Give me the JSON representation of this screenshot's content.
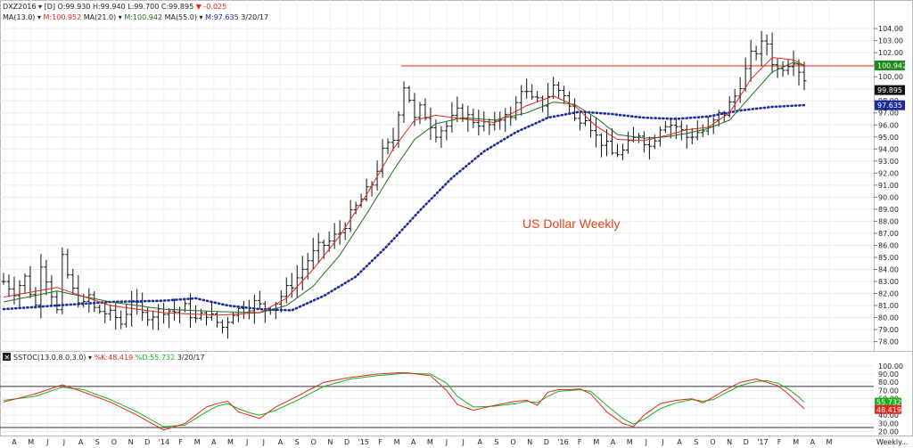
{
  "chart_data": [
    {
      "type": "ohlc",
      "symbol": "DXZ2016",
      "interval": "[D]",
      "info_line": {
        "open": "O:99.930",
        "high": "H:99.940",
        "low": "L:99.700",
        "close": "C:99.895",
        "change": "-0.025"
      },
      "ma_line": {
        "prefix": "MA(13.0)",
        "ma13": "M:100.952",
        "ma21_prefix": "MA(21.0)",
        "ma21": "M:100.942",
        "ma55_prefix": "MA(55.0)",
        "ma55": "M:97.635",
        "date": "3/20/17"
      },
      "annotation": "US Dollar Weekly",
      "y_ticks": [
        "104.00",
        "103.00",
        "102.00",
        "101.00",
        "100.00",
        "99.00",
        "98.00",
        "97.00",
        "96.00",
        "95.00",
        "94.00",
        "93.00",
        "92.00",
        "91.00",
        "90.00",
        "89.00",
        "88.00",
        "87.00",
        "86.00",
        "85.00",
        "84.00",
        "83.00",
        "82.00",
        "81.00",
        "80.00",
        "79.00",
        "78.00"
      ],
      "ylim": [
        77.6,
        104.6
      ],
      "resistance_level": 100.9,
      "price_labels": {
        "ma13_21": "100.942",
        "close": "99.895",
        "ma55": "97.635"
      },
      "price_path": [
        [
          0,
          83.0
        ],
        [
          2,
          82.2
        ],
        [
          4,
          83.3
        ],
        [
          6,
          81.0
        ],
        [
          7,
          84.6
        ],
        [
          9,
          82.0
        ],
        [
          10,
          80.5
        ],
        [
          11,
          84.8
        ],
        [
          13,
          82.2
        ],
        [
          15,
          81.0
        ],
        [
          16,
          81.8
        ],
        [
          17,
          80.7
        ],
        [
          19,
          80.4
        ],
        [
          21,
          80.0
        ],
        [
          22,
          79.5
        ],
        [
          24,
          81.5
        ],
        [
          26,
          80.2
        ],
        [
          28,
          80.3
        ],
        [
          30,
          80.7
        ],
        [
          32,
          80.5
        ],
        [
          34,
          80.8
        ],
        [
          36,
          79.8
        ],
        [
          38,
          80.4
        ],
        [
          40,
          79.6
        ],
        [
          41,
          79.2
        ],
        [
          43,
          80.5
        ],
        [
          45,
          80.8
        ],
        [
          47,
          81.2
        ],
        [
          49,
          80.7
        ],
        [
          51,
          81.3
        ],
        [
          53,
          82.3
        ],
        [
          55,
          83.3
        ],
        [
          57,
          84.8
        ],
        [
          59,
          85.8
        ],
        [
          61,
          86.3
        ],
        [
          63,
          87.1
        ],
        [
          65,
          88.5
        ],
        [
          67,
          89.8
        ],
        [
          69,
          91.1
        ],
        [
          71,
          93.7
        ],
        [
          73,
          94.8
        ],
        [
          74,
          97.2
        ],
        [
          75,
          99.3
        ],
        [
          76,
          98.2
        ],
        [
          77,
          96.4
        ],
        [
          78,
          97.3
        ],
        [
          79,
          96.8
        ],
        [
          81,
          95.4
        ],
        [
          83,
          95.9
        ],
        [
          85,
          97.0
        ],
        [
          86,
          96.9
        ],
        [
          88,
          96.4
        ],
        [
          90,
          96.0
        ],
        [
          92,
          95.9
        ],
        [
          94,
          97.2
        ],
        [
          95,
          96.4
        ],
        [
          97,
          99.1
        ],
        [
          99,
          98.0
        ],
        [
          101,
          97.8
        ],
        [
          103,
          99.2
        ],
        [
          105,
          98.6
        ],
        [
          107,
          96.4
        ],
        [
          109,
          96.8
        ],
        [
          111,
          95.0
        ],
        [
          113,
          94.2
        ],
        [
          114,
          93.6
        ],
        [
          116,
          93.8
        ],
        [
          118,
          94.8
        ],
        [
          119,
          95.3
        ],
        [
          121,
          94.2
        ],
        [
          123,
          95.9
        ],
        [
          124,
          96.2
        ],
        [
          126,
          95.9
        ],
        [
          128,
          95.0
        ],
        [
          130,
          95.4
        ],
        [
          132,
          95.6
        ],
        [
          134,
          96.8
        ],
        [
          135,
          97.0
        ],
        [
          137,
          98.4
        ],
        [
          139,
          100.5
        ],
        [
          140,
          101.7
        ],
        [
          142,
          102.6
        ],
        [
          143,
          102.8
        ],
        [
          144,
          101.3
        ],
        [
          145,
          100.6
        ],
        [
          147,
          101.2
        ],
        [
          148,
          101.5
        ],
        [
          149,
          100.6
        ],
        [
          150,
          99.9
        ]
      ],
      "ma13_path": [
        [
          0,
          81.7
        ],
        [
          10,
          82.5
        ],
        [
          20,
          81.0
        ],
        [
          30,
          80.4
        ],
        [
          40,
          80.2
        ],
        [
          48,
          80.4
        ],
        [
          53,
          81.6
        ],
        [
          58,
          84.0
        ],
        [
          63,
          86.8
        ],
        [
          68,
          90.2
        ],
        [
          73,
          94.0
        ],
        [
          77,
          96.4
        ],
        [
          81,
          96.8
        ],
        [
          86,
          96.5
        ],
        [
          92,
          96.2
        ],
        [
          98,
          97.6
        ],
        [
          103,
          98.4
        ],
        [
          107,
          97.6
        ],
        [
          111,
          95.9
        ],
        [
          115,
          94.8
        ],
        [
          120,
          94.7
        ],
        [
          124,
          95.1
        ],
        [
          128,
          95.6
        ],
        [
          132,
          95.8
        ],
        [
          136,
          97.0
        ],
        [
          140,
          99.8
        ],
        [
          144,
          101.6
        ],
        [
          148,
          101.4
        ],
        [
          150,
          100.95
        ]
      ],
      "ma21_path": [
        [
          0,
          81.3
        ],
        [
          10,
          82.2
        ],
        [
          20,
          81.3
        ],
        [
          30,
          80.7
        ],
        [
          40,
          80.5
        ],
        [
          48,
          80.4
        ],
        [
          53,
          81.0
        ],
        [
          58,
          82.6
        ],
        [
          63,
          85.2
        ],
        [
          68,
          88.6
        ],
        [
          73,
          92.2
        ],
        [
          77,
          94.8
        ],
        [
          81,
          96.1
        ],
        [
          86,
          96.6
        ],
        [
          92,
          96.4
        ],
        [
          98,
          97.0
        ],
        [
          103,
          97.9
        ],
        [
          107,
          97.7
        ],
        [
          111,
          96.6
        ],
        [
          115,
          95.2
        ],
        [
          120,
          94.9
        ],
        [
          124,
          95.0
        ],
        [
          128,
          95.3
        ],
        [
          132,
          95.7
        ],
        [
          136,
          96.4
        ],
        [
          140,
          98.4
        ],
        [
          144,
          100.4
        ],
        [
          148,
          101.2
        ],
        [
          150,
          100.94
        ]
      ],
      "ma55_path": [
        [
          0,
          80.7
        ],
        [
          10,
          81.0
        ],
        [
          20,
          81.3
        ],
        [
          30,
          81.4
        ],
        [
          36,
          81.6
        ],
        [
          42,
          81.0
        ],
        [
          48,
          80.7
        ],
        [
          54,
          80.6
        ],
        [
          60,
          81.8
        ],
        [
          66,
          83.4
        ],
        [
          72,
          86.0
        ],
        [
          78,
          88.9
        ],
        [
          84,
          91.6
        ],
        [
          90,
          93.8
        ],
        [
          96,
          95.4
        ],
        [
          102,
          96.6
        ],
        [
          108,
          97.1
        ],
        [
          114,
          96.9
        ],
        [
          120,
          96.6
        ],
        [
          126,
          96.5
        ],
        [
          132,
          96.7
        ],
        [
          138,
          97.2
        ],
        [
          144,
          97.5
        ],
        [
          150,
          97.64
        ]
      ]
    },
    {
      "type": "line",
      "title": "SSTOC(13.0,8.0,3.0)",
      "k_label": "%K:48.419",
      "d_label": "%D:55.732",
      "date": "3/20/17",
      "y_ticks": [
        "100.00",
        "90.00",
        "80.00",
        "70.00",
        "60.00",
        "50.00",
        "40.00",
        "30.00",
        "20.00"
      ],
      "ylim": [
        17.4,
        103.0
      ],
      "upper_level": 75,
      "lower_level": 25,
      "value_labels": {
        "d": "55.732",
        "k": "48.419"
      },
      "series": [
        {
          "name": "%K",
          "color": "#e0281c",
          "values": [
            [
              0,
              56
            ],
            [
              6,
              66
            ],
            [
              11,
              77
            ],
            [
              15,
              68
            ],
            [
              20,
              56
            ],
            [
              25,
              40
            ],
            [
              30,
              22
            ],
            [
              34,
              30
            ],
            [
              38,
              50
            ],
            [
              40,
              54
            ],
            [
              42,
              57
            ],
            [
              44,
              44
            ],
            [
              46,
              40
            ],
            [
              48,
              36
            ],
            [
              51,
              50
            ],
            [
              55,
              63
            ],
            [
              60,
              80
            ],
            [
              65,
              86
            ],
            [
              70,
              90
            ],
            [
              75,
              92
            ],
            [
              80,
              88
            ],
            [
              83,
              70
            ],
            [
              85,
              53
            ],
            [
              88,
              46
            ],
            [
              92,
              52
            ],
            [
              96,
              57
            ],
            [
              98,
              58
            ],
            [
              100,
              52
            ],
            [
              102,
              68
            ],
            [
              104,
              71
            ],
            [
              106,
              71
            ],
            [
              108,
              72
            ],
            [
              110,
              66
            ],
            [
              113,
              44
            ],
            [
              116,
              30
            ],
            [
              118,
              26
            ],
            [
              120,
              40
            ],
            [
              123,
              54
            ],
            [
              126,
              58
            ],
            [
              129,
              60
            ],
            [
              131,
              55
            ],
            [
              133,
              62
            ],
            [
              135,
              70
            ],
            [
              138,
              80
            ],
            [
              141,
              84
            ],
            [
              143,
              80
            ],
            [
              145,
              76
            ],
            [
              147,
              66
            ],
            [
              149,
              54
            ],
            [
              150,
              48
            ]
          ]
        },
        {
          "name": "%D",
          "color": "#19b219",
          "values": [
            [
              0,
              58
            ],
            [
              6,
              63
            ],
            [
              11,
              74
            ],
            [
              15,
              71
            ],
            [
              20,
              59
            ],
            [
              25,
              44
            ],
            [
              30,
              26
            ],
            [
              34,
              28
            ],
            [
              38,
              44
            ],
            [
              40,
              51
            ],
            [
              42,
              54
            ],
            [
              44,
              48
            ],
            [
              46,
              43
            ],
            [
              48,
              40
            ],
            [
              51,
              46
            ],
            [
              55,
              58
            ],
            [
              60,
              75
            ],
            [
              65,
              84
            ],
            [
              70,
              88
            ],
            [
              75,
              91
            ],
            [
              80,
              90
            ],
            [
              83,
              79
            ],
            [
              85,
              63
            ],
            [
              88,
              50
            ],
            [
              92,
              51
            ],
            [
              96,
              54
            ],
            [
              98,
              57
            ],
            [
              100,
              55
            ],
            [
              102,
              63
            ],
            [
              104,
              69
            ],
            [
              106,
              70
            ],
            [
              108,
              71
            ],
            [
              110,
              69
            ],
            [
              113,
              52
            ],
            [
              116,
              36
            ],
            [
              118,
              29
            ],
            [
              120,
              35
            ],
            [
              123,
              48
            ],
            [
              126,
              55
            ],
            [
              129,
              59
            ],
            [
              131,
              57
            ],
            [
              133,
              59
            ],
            [
              135,
              66
            ],
            [
              138,
              76
            ],
            [
              141,
              81
            ],
            [
              143,
              82
            ],
            [
              145,
              79
            ],
            [
              147,
              72
            ],
            [
              149,
              62
            ],
            [
              150,
              55.7
            ]
          ]
        }
      ]
    }
  ],
  "x_axis": {
    "labels": [
      "A",
      "M",
      "J",
      "J",
      "A",
      "S",
      "O",
      "N",
      "D",
      "'14",
      "F",
      "M",
      "A",
      "M",
      "J",
      "J",
      "A",
      "S",
      "O",
      "N",
      "D",
      "'15",
      "F",
      "M",
      "A",
      "M",
      "J",
      "J",
      "A",
      "S",
      "O",
      "N",
      "D",
      "'16",
      "F",
      "M",
      "A",
      "M",
      "J",
      "J",
      "A",
      "S",
      "O",
      "N",
      "D",
      "'17",
      "F",
      "M",
      "A",
      "M"
    ],
    "interval_label": "Weekly..."
  }
}
